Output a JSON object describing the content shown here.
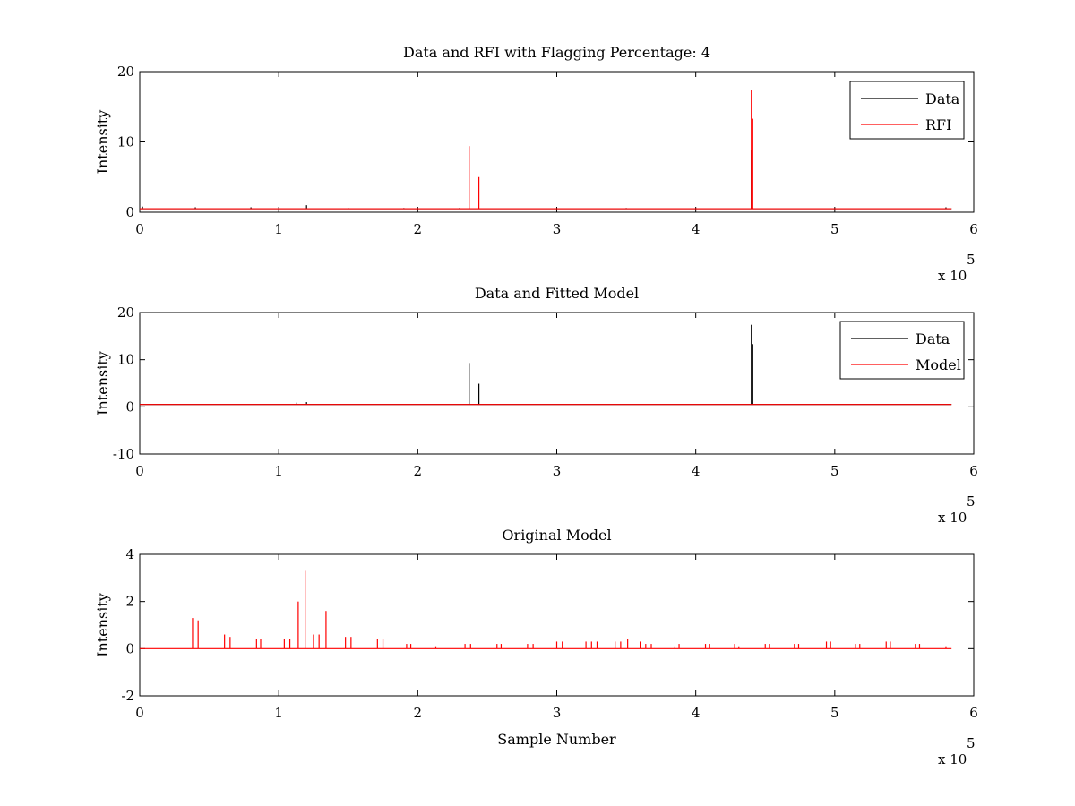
{
  "chart_data": [
    {
      "type": "line",
      "title": "Data and RFI with Flagging Percentage: 4",
      "xlabel": "",
      "ylabel": "Intensity",
      "xlim": [
        0,
        600000
      ],
      "ylim": [
        0,
        20
      ],
      "xticks": [
        0,
        1,
        2,
        3,
        4,
        5,
        6
      ],
      "yticks": [
        0,
        10,
        20
      ],
      "x_multiplier": "x 10",
      "x_multiplier_exp": "5",
      "legend": {
        "position": "top-right",
        "entries": [
          "Data",
          "RFI"
        ]
      },
      "series": [
        {
          "name": "Data",
          "color": "#000000",
          "baseline": 0.5,
          "x_end": 584000,
          "spikes": [
            [
              2000,
              0.8
            ],
            [
              40000,
              0.7
            ],
            [
              80000,
              0.7
            ],
            [
              120000,
              1.0
            ],
            [
              150000,
              0.6
            ],
            [
              190000,
              0.6
            ],
            [
              230000,
              0.6
            ],
            [
              300000,
              0.6
            ],
            [
              350000,
              0.6
            ],
            [
              400000,
              0.6
            ],
            [
              440000,
              8.8
            ],
            [
              441000,
              0.6
            ],
            [
              500000,
              0.6
            ],
            [
              580000,
              0.7
            ]
          ]
        },
        {
          "name": "RFI",
          "color": "#ff0000",
          "baseline": 0.5,
          "x_end": 584000,
          "spikes": [
            [
              237000,
              9.4
            ],
            [
              244000,
              5.0
            ],
            [
              440000,
              17.4
            ],
            [
              441000,
              13.3
            ]
          ]
        }
      ]
    },
    {
      "type": "line",
      "title": "Data and Fitted Model",
      "xlabel": "",
      "ylabel": "Intensity",
      "xlim": [
        0,
        600000
      ],
      "ylim": [
        -10,
        20
      ],
      "xticks": [
        0,
        1,
        2,
        3,
        4,
        5,
        6
      ],
      "yticks": [
        -10,
        0,
        10,
        20
      ],
      "x_multiplier": "x 10",
      "x_multiplier_exp": "5",
      "legend": {
        "position": "top-right",
        "entries": [
          "Data",
          "Model"
        ]
      },
      "series": [
        {
          "name": "Data",
          "color": "#000000",
          "baseline": 0.5,
          "x_end": 584000,
          "spikes": [
            [
              113000,
              0.9
            ],
            [
              120000,
              1.0
            ],
            [
              237000,
              9.3
            ],
            [
              244000,
              4.9
            ],
            [
              440000,
              17.4
            ],
            [
              441000,
              13.3
            ]
          ]
        },
        {
          "name": "Model",
          "color": "#ff0000",
          "baseline": 0.5,
          "x_end": 584000,
          "spikes": []
        }
      ]
    },
    {
      "type": "line",
      "title": "Original Model",
      "xlabel": "Sample Number",
      "ylabel": "Intensity",
      "xlim": [
        0,
        600000
      ],
      "ylim": [
        -2,
        4
      ],
      "xticks": [
        0,
        1,
        2,
        3,
        4,
        5,
        6
      ],
      "yticks": [
        -2,
        0,
        2,
        4
      ],
      "x_multiplier": "x 10",
      "x_multiplier_exp": "5",
      "legend": null,
      "series": [
        {
          "name": "",
          "color": "#ff0000",
          "baseline": 0.0,
          "x_end": 584000,
          "spikes": [
            [
              38000,
              1.3
            ],
            [
              42000,
              1.2
            ],
            [
              61000,
              0.6
            ],
            [
              65000,
              0.5
            ],
            [
              84000,
              0.4
            ],
            [
              87000,
              0.4
            ],
            [
              104000,
              0.4
            ],
            [
              108000,
              0.4
            ],
            [
              114000,
              2.0
            ],
            [
              119000,
              3.3
            ],
            [
              125000,
              0.6
            ],
            [
              129000,
              0.6
            ],
            [
              134000,
              1.6
            ],
            [
              148000,
              0.5
            ],
            [
              152000,
              0.5
            ],
            [
              171000,
              0.4
            ],
            [
              175000,
              0.4
            ],
            [
              192000,
              0.2
            ],
            [
              195000,
              0.2
            ],
            [
              213000,
              0.1
            ],
            [
              234000,
              0.2
            ],
            [
              238000,
              0.2
            ],
            [
              257000,
              0.2
            ],
            [
              260000,
              0.2
            ],
            [
              279000,
              0.2
            ],
            [
              283000,
              0.2
            ],
            [
              300000,
              0.3
            ],
            [
              304000,
              0.3
            ],
            [
              321000,
              0.3
            ],
            [
              325000,
              0.3
            ],
            [
              329000,
              0.3
            ],
            [
              342000,
              0.3
            ],
            [
              346000,
              0.3
            ],
            [
              351000,
              0.4
            ],
            [
              360000,
              0.3
            ],
            [
              364000,
              0.2
            ],
            [
              368000,
              0.2
            ],
            [
              385000,
              0.1
            ],
            [
              388000,
              0.2
            ],
            [
              407000,
              0.2
            ],
            [
              410000,
              0.2
            ],
            [
              428000,
              0.2
            ],
            [
              431000,
              0.1
            ],
            [
              450000,
              0.2
            ],
            [
              453000,
              0.2
            ],
            [
              471000,
              0.2
            ],
            [
              474000,
              0.2
            ],
            [
              494000,
              0.3
            ],
            [
              497000,
              0.3
            ],
            [
              515000,
              0.2
            ],
            [
              518000,
              0.2
            ],
            [
              537000,
              0.3
            ],
            [
              540000,
              0.3
            ],
            [
              558000,
              0.2
            ],
            [
              561000,
              0.2
            ],
            [
              580000,
              0.1
            ]
          ]
        }
      ]
    }
  ]
}
